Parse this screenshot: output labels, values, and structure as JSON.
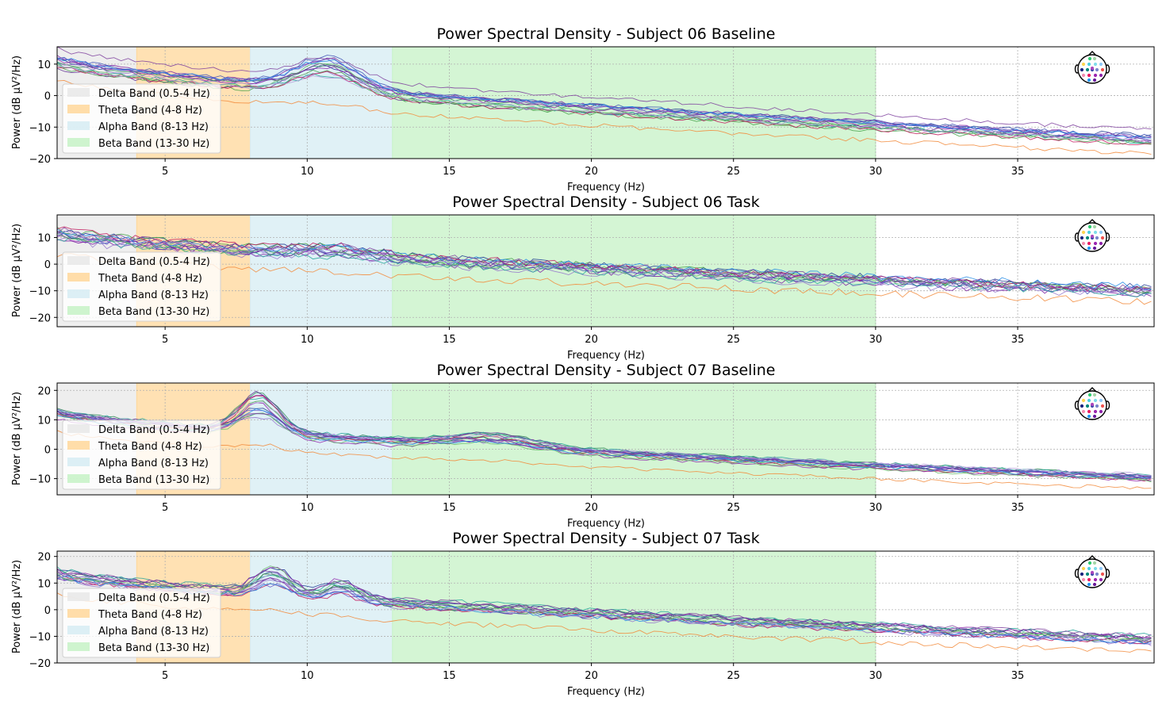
{
  "figure": {
    "background": "#ffffff"
  },
  "chart_data": [
    {
      "type": "line",
      "title": "Power Spectral Density - Subject 06 Baseline",
      "xlabel": "Frequency (Hz)",
      "ylabel": "Power (dB µV²/Hz)",
      "xlim": [
        1.2,
        39.8
      ],
      "ylim": [
        -20,
        15.5
      ],
      "xticks": [
        5,
        10,
        15,
        20,
        25,
        30,
        35
      ],
      "yticks": [
        10,
        0,
        -10,
        -20
      ],
      "grid": true,
      "legend_position": "lower-left",
      "bands": [
        {
          "label": "Delta Band (0.5-4 Hz)",
          "range": [
            0.5,
            4
          ],
          "color": "#e8e8e8"
        },
        {
          "label": "Theta Band (4-8 Hz)",
          "range": [
            4,
            8
          ],
          "color": "#ffd79a"
        },
        {
          "label": "Alpha Band (8-13 Hz)",
          "range": [
            8,
            13
          ],
          "color": "#d6ecf3"
        },
        {
          "label": "Beta Band (13-30 Hz)",
          "range": [
            13,
            30
          ],
          "color": "#c6f2c6"
        }
      ],
      "channel_lines": {
        "count": 16,
        "shape": {
          "start": 11,
          "start_spread": 2.5,
          "end": -14,
          "end_spread": 2,
          "alpha_peak": {
            "center": 10.7,
            "width": 1.1,
            "amplitude": 7
          },
          "orange_outlier_offset": -6,
          "purple_outlier_offset": 4,
          "noise": 0.7
        }
      }
    },
    {
      "type": "line",
      "title": "Power Spectral Density - Subject 06 Task",
      "xlabel": "Frequency (Hz)",
      "ylabel": "Power (dB µV²/Hz)",
      "xlim": [
        1.2,
        39.8
      ],
      "ylim": [
        -23.5,
        18.5
      ],
      "xticks": [
        5,
        10,
        15,
        20,
        25,
        30,
        35
      ],
      "yticks": [
        10,
        0,
        -10,
        -20
      ],
      "grid": true,
      "legend_position": "lower-left",
      "bands": [
        {
          "label": "Delta Band (0.5-4 Hz)",
          "range": [
            0.5,
            4
          ],
          "color": "#e8e8e8"
        },
        {
          "label": "Theta Band (4-8 Hz)",
          "range": [
            4,
            8
          ],
          "color": "#ffd79a"
        },
        {
          "label": "Alpha Band (8-13 Hz)",
          "range": [
            8,
            13
          ],
          "color": "#d6ecf3"
        },
        {
          "label": "Beta Band (13-30 Hz)",
          "range": [
            13,
            30
          ],
          "color": "#c6f2c6"
        }
      ],
      "channel_lines": {
        "count": 16,
        "shape": {
          "start": 12,
          "start_spread": 3,
          "end": -10,
          "end_spread": 2.5,
          "alpha_peak": {
            "center": 11,
            "width": 1.2,
            "amplitude": 2
          },
          "orange_outlier_offset": -8,
          "purple_outlier_offset": 1,
          "noise": 1.4
        }
      }
    },
    {
      "type": "line",
      "title": "Power Spectral Density - Subject 07 Baseline",
      "xlabel": "Frequency (Hz)",
      "ylabel": "Power (dB µV²/Hz)",
      "xlim": [
        1.2,
        39.8
      ],
      "ylim": [
        -15.5,
        22.5
      ],
      "xticks": [
        5,
        10,
        15,
        20,
        25,
        30,
        35
      ],
      "yticks": [
        20,
        10,
        0,
        -10
      ],
      "grid": true,
      "legend_position": "lower-left",
      "bands": [
        {
          "label": "Delta Band (0.5-4 Hz)",
          "range": [
            0.5,
            4
          ],
          "color": "#e8e8e8"
        },
        {
          "label": "Theta Band (4-8 Hz)",
          "range": [
            4,
            8
          ],
          "color": "#ffd79a"
        },
        {
          "label": "Alpha Band (8-13 Hz)",
          "range": [
            8,
            13
          ],
          "color": "#d6ecf3"
        },
        {
          "label": "Beta Band (13-30 Hz)",
          "range": [
            13,
            30
          ],
          "color": "#c6f2c6"
        }
      ],
      "channel_lines": {
        "count": 16,
        "shape": {
          "start": 12,
          "start_spread": 2,
          "end": -10,
          "end_spread": 1.5,
          "alpha_peak": {
            "center": 8.3,
            "width": 0.7,
            "amplitude": 10
          },
          "secondary_peak": {
            "center": 16.5,
            "width": 1.5,
            "amplitude": 3
          },
          "orange_outlier_offset": -6,
          "purple_outlier_offset": 1,
          "noise": 0.6
        }
      }
    },
    {
      "type": "line",
      "title": "Power Spectral Density - Subject 07 Task",
      "xlabel": "Frequency (Hz)",
      "ylabel": "Power (dB µV²/Hz)",
      "xlim": [
        1.2,
        39.8
      ],
      "ylim": [
        -20,
        22
      ],
      "xticks": [
        5,
        10,
        15,
        20,
        25,
        30,
        35
      ],
      "yticks": [
        20,
        10,
        0,
        -10,
        -20
      ],
      "grid": true,
      "legend_position": "lower-left",
      "bands": [
        {
          "label": "Delta Band (0.5-4 Hz)",
          "range": [
            0.5,
            4
          ],
          "color": "#e8e8e8"
        },
        {
          "label": "Theta Band (4-8 Hz)",
          "range": [
            4,
            8
          ],
          "color": "#ffd79a"
        },
        {
          "label": "Alpha Band (8-13 Hz)",
          "range": [
            8,
            13
          ],
          "color": "#d6ecf3"
        },
        {
          "label": "Beta Band (13-30 Hz)",
          "range": [
            13,
            30
          ],
          "color": "#c6f2c6"
        }
      ],
      "channel_lines": {
        "count": 16,
        "shape": {
          "start": 14,
          "start_spread": 2.5,
          "end": -11,
          "end_spread": 2,
          "alpha_peak": {
            "center": 8.8,
            "width": 0.6,
            "amplitude": 8
          },
          "secondary_peak": {
            "center": 11.2,
            "width": 0.6,
            "amplitude": 5
          },
          "orange_outlier_offset": -8,
          "purple_outlier_offset": 1,
          "noise": 1.0
        }
      }
    }
  ],
  "channel_colors": [
    "#1f3a93",
    "#2e8b57",
    "#5b2c91",
    "#7b1fa2",
    "#9575cd",
    "#3f51b5",
    "#43a047",
    "#26a69a",
    "#6a5acd",
    "#c2185b",
    "#8e24aa",
    "#66bb6a",
    "#1e88e5",
    "#b39ddb",
    "#aed581",
    "#f4a460"
  ],
  "outlier_colors": {
    "orange": "#f28a3a",
    "purple": "#7e3f9e"
  },
  "head_dot_colors": [
    "#2ecc71",
    "#a5d6a7",
    "#ffd54f",
    "#4dd0e1",
    "#80deea",
    "#90caf9",
    "#1a237e",
    "#00897b",
    "#3949ab",
    "#7986cb",
    "#ef5350",
    "#f48fb1",
    "#e91e63",
    "#9c27b0",
    "#8e24aa",
    "#2196f3",
    "#6a1b9a",
    "#ab47bc"
  ]
}
